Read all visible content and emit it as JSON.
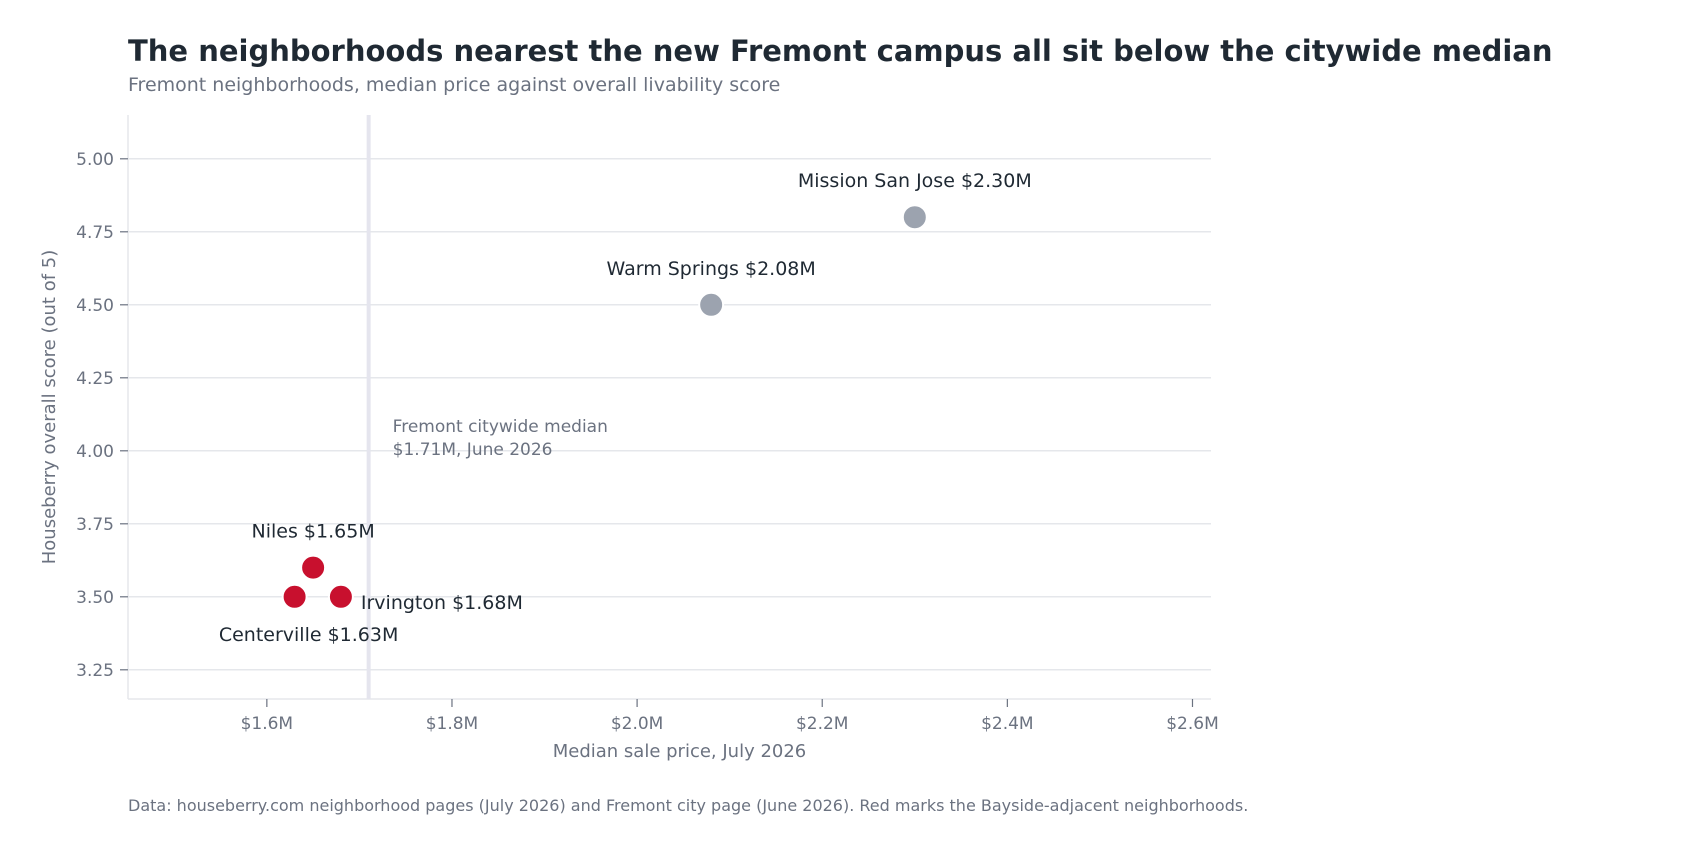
{
  "chart_data": {
    "type": "scatter",
    "title": "The neighborhoods nearest the new Fremont campus all sit below the citywide median",
    "subtitle": "Fremont neighborhoods, median price against overall livability score",
    "xlabel": "Median sale price, July 2026",
    "ylabel": "Houseberry overall score (out of 5)",
    "xlim": [
      1.45,
      2.62
    ],
    "ylim": [
      3.15,
      5.15
    ],
    "x_ticks": [
      1.6,
      1.8,
      2.0,
      2.2,
      2.4,
      2.6
    ],
    "x_tick_labels": [
      "$1.6M",
      "$1.8M",
      "$2.0M",
      "$2.2M",
      "$2.4M",
      "$2.6M"
    ],
    "y_ticks": [
      3.25,
      3.5,
      3.75,
      4.0,
      4.25,
      4.5,
      4.75,
      5.0
    ],
    "y_tick_labels": [
      "3.25",
      "3.50",
      "3.75",
      "4.00",
      "4.25",
      "4.50",
      "4.75",
      "5.00"
    ],
    "grid": "horizontal",
    "points": [
      {
        "name": "Mission San Jose",
        "price_label": "$2.30M",
        "x": 2.3,
        "y": 4.8,
        "highlight": false
      },
      {
        "name": "Warm Springs",
        "price_label": "$2.08M",
        "x": 2.08,
        "y": 4.5,
        "highlight": false
      },
      {
        "name": "Niles",
        "price_label": "$1.65M",
        "x": 1.65,
        "y": 3.6,
        "highlight": true
      },
      {
        "name": "Irvington",
        "price_label": "$1.68M",
        "x": 1.68,
        "y": 3.5,
        "highlight": true
      },
      {
        "name": "Centerville",
        "price_label": "$1.63M",
        "x": 1.63,
        "y": 3.5,
        "highlight": true
      }
    ],
    "reference_line": {
      "x": 1.71,
      "label_line1": "Fremont citywide median",
      "label_line2": "$1.71M, June 2026"
    },
    "colors": {
      "highlight": "#c8102e",
      "other": "#9ca3af",
      "reference": "#e5e5ee",
      "grid": "#e5e7eb"
    }
  },
  "footnote": "Data: houseberry.com neighborhood pages (July 2026) and Fremont city page (June 2026). Red marks the Bayside-adjacent neighborhoods."
}
